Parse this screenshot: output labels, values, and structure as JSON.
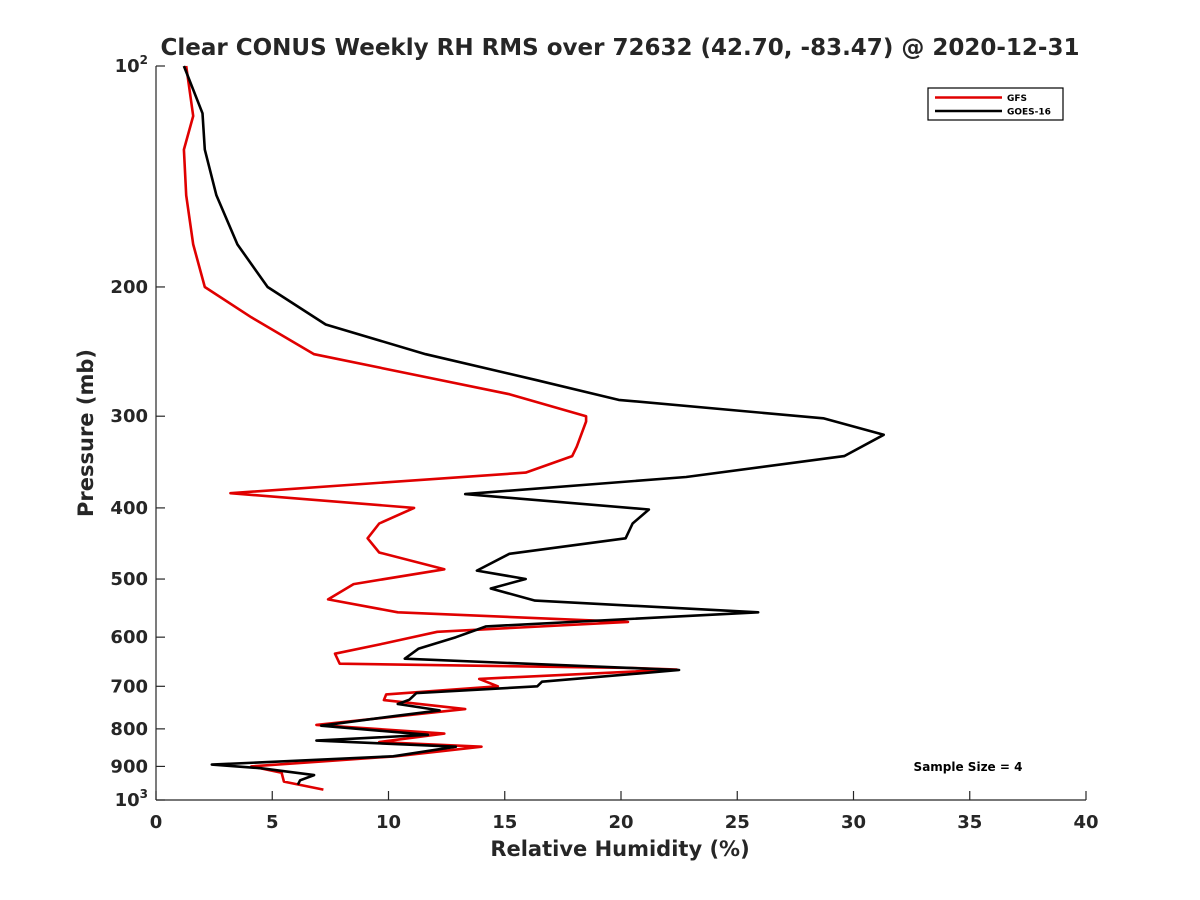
{
  "chart_data": {
    "type": "line",
    "title": "Clear CONUS Weekly RH RMS over 72632 (42.70, -83.47) @ 2020-12-31",
    "xlabel": "Relative Humidity (%)",
    "ylabel": "Pressure (mb)",
    "xlim": [
      0,
      40
    ],
    "ylim": [
      100,
      1000
    ],
    "yscale": "log",
    "y_reversed": true,
    "grid": false,
    "legend_position": "top-right",
    "x_ticks": [
      "0",
      "5",
      "10",
      "15",
      "20",
      "25",
      "30",
      "35",
      "40"
    ],
    "y_ticks": [
      {
        "value": 100,
        "label": "10",
        "sup": "2"
      },
      {
        "value": 200,
        "label": "200",
        "sup": ""
      },
      {
        "value": 300,
        "label": "300",
        "sup": ""
      },
      {
        "value": 400,
        "label": "400",
        "sup": ""
      },
      {
        "value": 500,
        "label": "500",
        "sup": ""
      },
      {
        "value": 600,
        "label": "600",
        "sup": ""
      },
      {
        "value": 700,
        "label": "700",
        "sup": ""
      },
      {
        "value": 800,
        "label": "800",
        "sup": ""
      },
      {
        "value": 900,
        "label": "900",
        "sup": ""
      },
      {
        "value": 1000,
        "label": "10",
        "sup": "3"
      }
    ],
    "annotation": "Sample Size = 4",
    "series": [
      {
        "name": "GFS",
        "color": "#e00000",
        "points": [
          [
            1.3,
            100
          ],
          [
            1.6,
            117
          ],
          [
            1.2,
            130
          ],
          [
            1.3,
            150
          ],
          [
            1.6,
            175
          ],
          [
            2.1,
            200
          ],
          [
            4.1,
            220
          ],
          [
            6.8,
            247
          ],
          [
            15.2,
            280
          ],
          [
            18.5,
            300
          ],
          [
            18.5,
            305
          ],
          [
            18.1,
            330
          ],
          [
            17.9,
            340
          ],
          [
            15.9,
            358
          ],
          [
            3.2,
            382
          ],
          [
            11.1,
            400
          ],
          [
            9.6,
            420
          ],
          [
            9.1,
            440
          ],
          [
            9.6,
            460
          ],
          [
            12.4,
            485
          ],
          [
            8.5,
            508
          ],
          [
            7.4,
            533
          ],
          [
            10.4,
            555
          ],
          [
            20.3,
            572
          ],
          [
            12.1,
            590
          ],
          [
            9.8,
            612
          ],
          [
            7.7,
            632
          ],
          [
            7.9,
            652
          ],
          [
            20.5,
            661
          ],
          [
            22.4,
            664
          ],
          [
            13.9,
            684
          ],
          [
            14.7,
            700
          ],
          [
            9.9,
            718
          ],
          [
            9.8,
            731
          ],
          [
            13.3,
            752
          ],
          [
            6.9,
            790
          ],
          [
            12.4,
            812
          ],
          [
            9.6,
            834
          ],
          [
            14.0,
            846
          ],
          [
            10.3,
            872
          ],
          [
            4.1,
            900
          ],
          [
            5.4,
            918
          ],
          [
            5.5,
            944
          ],
          [
            7.2,
            968
          ]
        ]
      },
      {
        "name": "GOES-16",
        "color": "#000000",
        "points": [
          [
            1.2,
            100
          ],
          [
            2.0,
            116
          ],
          [
            2.1,
            130
          ],
          [
            2.6,
            150
          ],
          [
            3.5,
            175
          ],
          [
            4.8,
            200
          ],
          [
            7.3,
            225
          ],
          [
            11.6,
            247
          ],
          [
            16.4,
            268
          ],
          [
            19.9,
            285
          ],
          [
            28.7,
            302
          ],
          [
            31.3,
            318
          ],
          [
            29.6,
            340
          ],
          [
            22.8,
            363
          ],
          [
            13.3,
            383
          ],
          [
            21.2,
            402
          ],
          [
            20.5,
            420
          ],
          [
            20.2,
            440
          ],
          [
            15.2,
            462
          ],
          [
            13.8,
            487
          ],
          [
            15.9,
            500
          ],
          [
            14.4,
            515
          ],
          [
            16.3,
            535
          ],
          [
            25.9,
            555
          ],
          [
            14.2,
            580
          ],
          [
            12.9,
            600
          ],
          [
            11.3,
            622
          ],
          [
            10.7,
            642
          ],
          [
            22.5,
            665
          ],
          [
            16.6,
            690
          ],
          [
            16.4,
            700
          ],
          [
            11.2,
            715
          ],
          [
            10.9,
            730
          ],
          [
            10.4,
            740
          ],
          [
            12.2,
            755
          ],
          [
            10.3,
            768
          ],
          [
            7.1,
            792
          ],
          [
            11.7,
            815
          ],
          [
            6.9,
            830
          ],
          [
            12.9,
            846
          ],
          [
            10.2,
            872
          ],
          [
            2.4,
            895
          ],
          [
            4.5,
            905
          ],
          [
            6.8,
            925
          ],
          [
            6.2,
            940
          ],
          [
            6.1,
            953
          ]
        ]
      }
    ]
  }
}
